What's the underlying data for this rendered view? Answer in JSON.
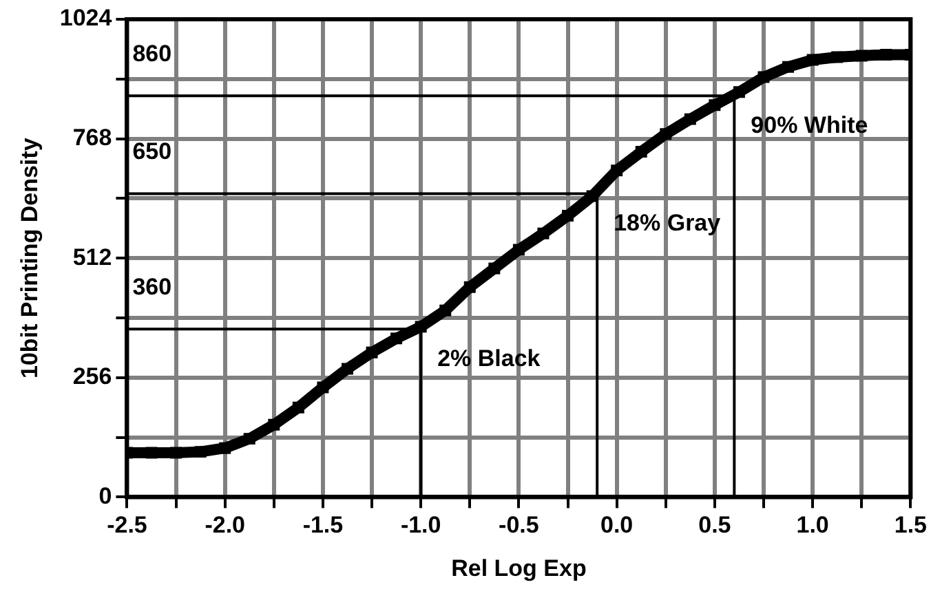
{
  "chart_data": {
    "type": "line",
    "xlabel": "Rel Log Exp",
    "ylabel": "10bit Printing Density",
    "xlim": [
      -2.5,
      1.5
    ],
    "xticks": [
      -2.5,
      {
        "value": -2.25,
        "label": null
      },
      {
        "value": -2.0,
        "label": "-2.0"
      },
      {
        "value": -1.75,
        "label": null
      },
      -1.5,
      {
        "value": -1.25,
        "label": null
      },
      {
        "value": -1.0,
        "label": "-1.0"
      },
      {
        "value": -0.75,
        "label": null
      },
      -0.5,
      {
        "value": -0.25,
        "label": null
      },
      {
        "value": 0,
        "label": "0.0"
      },
      {
        "value": 0.25,
        "label": null
      },
      0.5,
      {
        "value": 0.75,
        "label": null
      },
      {
        "value": 1.0,
        "label": "1.0"
      },
      {
        "value": 1.25,
        "label": null
      },
      1.5
    ],
    "ylim": [
      0,
      1024
    ],
    "yticks": [
      0,
      {
        "value": 128,
        "label": null
      },
      256,
      {
        "value": 384,
        "label": null
      },
      512,
      {
        "value": 640,
        "label": null
      },
      768,
      {
        "value": 896,
        "label": null
      },
      1024
    ],
    "grid": true,
    "legend": false,
    "series": [
      {
        "color": "#000000",
        "marker": "square",
        "x": [
          -2.5,
          -2.375,
          -2.25,
          -2.125,
          -2.0,
          -1.875,
          -1.75,
          -1.625,
          -1.5,
          -1.375,
          -1.25,
          -1.125,
          -1.0,
          -0.875,
          -0.75,
          -0.625,
          -0.5,
          -0.375,
          -0.25,
          -0.125,
          0,
          0.125,
          0.25,
          0.375,
          0.5,
          0.625,
          0.75,
          0.875,
          1.0,
          1.125,
          1.25,
          1.375,
          1.5
        ],
        "values": [
          95,
          95,
          95,
          97,
          105,
          125,
          155,
          192,
          235,
          275,
          310,
          340,
          365,
          400,
          450,
          490,
          530,
          565,
          603,
          645,
          700,
          740,
          778,
          810,
          840,
          868,
          900,
          922,
          937,
          943,
          946,
          948,
          948
        ]
      },
      {
        "color": "#000000",
        "marker": "none",
        "x": [
          -2.5,
          -1.0,
          -1.0
        ],
        "values": [
          360,
          360,
          0
        ]
      },
      {
        "color": "#000000",
        "marker": "none",
        "x": [
          -2.5,
          -0.1,
          -0.1
        ],
        "values": [
          650,
          650,
          0
        ]
      },
      {
        "color": "#000000",
        "marker": "none",
        "x": [
          -2.5,
          0.6,
          0.6
        ],
        "values": [
          860,
          860,
          0
        ]
      }
    ],
    "annotations": [
      {
        "text": "360",
        "x": -2.5,
        "y": 360
      },
      {
        "text": "650",
        "x": -2.5,
        "y": 650
      },
      {
        "text": "860",
        "x": -2.5,
        "y": 860
      },
      {
        "text": "2% Black",
        "x": -1.0,
        "y": 360
      },
      {
        "text": "18% Gray",
        "x": -0.1,
        "y": 650
      },
      {
        "text": "90% White",
        "x": 0.6,
        "y": 860
      }
    ]
  }
}
